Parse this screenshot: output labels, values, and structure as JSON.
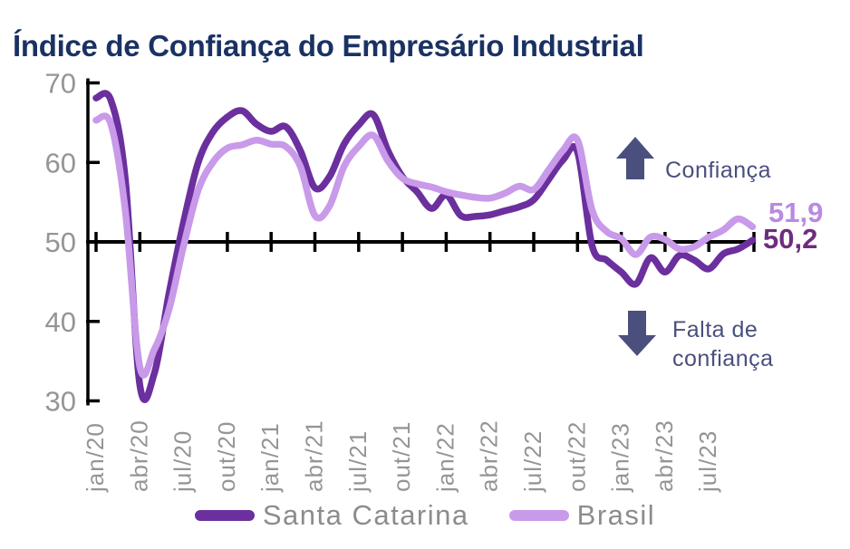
{
  "title": {
    "text": "Índice de Confiança do Empresário Industrial",
    "color": "#1a3263"
  },
  "axis": {
    "line_color": "#000000",
    "label_color": "#959595"
  },
  "annotations": {
    "color": "#4a4f7e",
    "up": {
      "label": "Confiança"
    },
    "down": {
      "line1": "Falta de",
      "line2": "confiança"
    }
  },
  "legend": {
    "text_color": "#8c8c8c"
  },
  "chart_data": {
    "type": "line",
    "title": "Índice de Confiança do Empresário Industrial",
    "ylim": [
      30,
      70
    ],
    "y_ticks": [
      70,
      60,
      50,
      40,
      30
    ],
    "baseline_value": 50,
    "grid": false,
    "legend_position": "bottom",
    "x_tick_labels": [
      "jan/20",
      "abr/20",
      "jul/20",
      "out/20",
      "jan/21",
      "abr/21",
      "jul/21",
      "out/21",
      "jan/22",
      "abr/22",
      "jul/22",
      "out/22",
      "jan/23",
      "abr/23",
      "jul/23"
    ],
    "x_months": [
      "jan/20",
      "fev/20",
      "mar/20",
      "abr/20",
      "mai/20",
      "jun/20",
      "jul/20",
      "ago/20",
      "set/20",
      "out/20",
      "nov/20",
      "dez/20",
      "jan/21",
      "fev/21",
      "mar/21",
      "abr/21",
      "mai/21",
      "jun/21",
      "jul/21",
      "ago/21",
      "set/21",
      "out/21",
      "nov/21",
      "dez/21",
      "jan/22",
      "fev/22",
      "mar/22",
      "abr/22",
      "mai/22",
      "jun/22",
      "jul/22",
      "ago/22",
      "set/22",
      "out/22",
      "nov/22",
      "dez/22",
      "jan/23",
      "fev/23",
      "mar/23",
      "abr/23",
      "mai/23",
      "jun/23",
      "jul/23",
      "ago/23",
      "set/23",
      "out/23"
    ],
    "series": [
      {
        "name": "Santa Catarina",
        "color": "#6b2f9e",
        "end_label": "50,2",
        "end_label_color": "#6e2c80",
        "values": [
          68.1,
          67.9,
          58.0,
          32.0,
          33.5,
          43.5,
          52.5,
          60.0,
          63.8,
          65.7,
          66.5,
          64.8,
          63.9,
          64.5,
          61.5,
          56.8,
          58.2,
          62.3,
          64.7,
          66.0,
          61.5,
          58.2,
          56.3,
          54.2,
          55.9,
          53.3,
          53.2,
          53.4,
          53.9,
          54.4,
          55.3,
          57.8,
          60.3,
          61.3,
          49.5,
          47.7,
          46.2,
          44.7,
          48.0,
          46.2,
          48.3,
          47.7,
          46.6,
          48.5,
          49.1,
          50.2
        ]
      },
      {
        "name": "Brasil",
        "color": "#c89ae9",
        "end_label": "51,9",
        "end_label_color": "#b98ae0",
        "values": [
          65.3,
          64.9,
          54.0,
          34.3,
          36.5,
          41.5,
          49.5,
          56.5,
          60.0,
          61.8,
          62.2,
          62.8,
          62.3,
          62.0,
          59.5,
          53.3,
          54.5,
          59.5,
          62.0,
          63.4,
          60.2,
          58.0,
          57.3,
          56.9,
          56.3,
          55.9,
          55.6,
          55.5,
          56.1,
          57.0,
          56.6,
          59.0,
          61.5,
          62.8,
          54.0,
          51.3,
          50.4,
          48.4,
          50.6,
          50.3,
          49.1,
          49.4,
          50.6,
          51.5,
          52.9,
          51.9
        ]
      }
    ]
  }
}
